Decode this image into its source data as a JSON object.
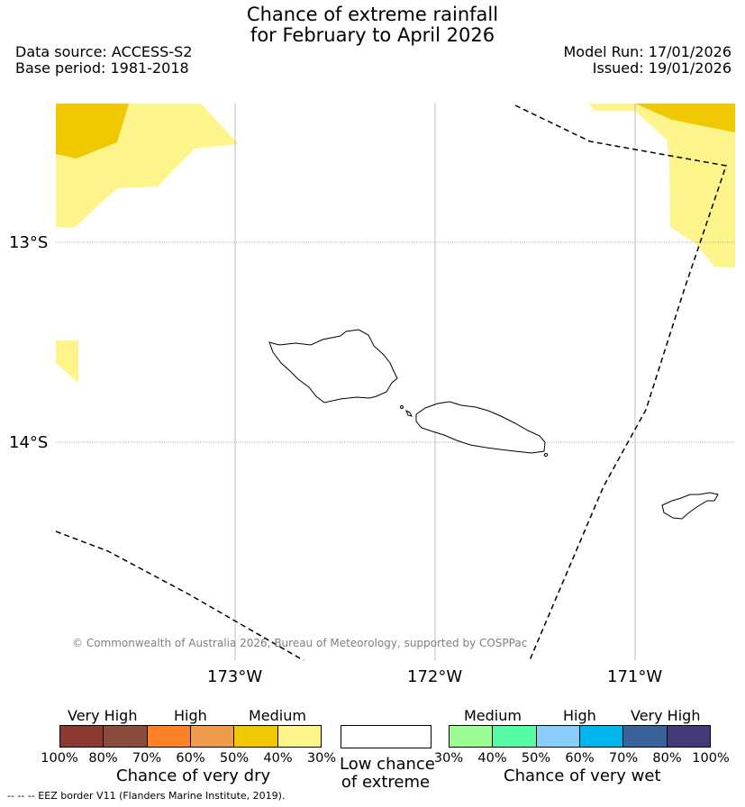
{
  "title": {
    "line1": "Chance of extreme rainfall",
    "line2": "for February to April 2026"
  },
  "meta": {
    "data_source": "Data source: ACCESS-S2",
    "base_period": "Base period: 1981-2018",
    "model_run": "Model Run: 17/01/2026",
    "issued": "Issued: 19/01/2026"
  },
  "map": {
    "lat_labels": [
      "13°S",
      "14°S"
    ],
    "lon_labels": [
      "173°W",
      "172°W",
      "171°W"
    ],
    "copyright": "© Commonwealth of Australia 2026, Bureau of Meteorology, supported by COSPPac",
    "legend_note": "--  --  -- EEZ border V11 (Flanders Marine Institute, 2019)."
  },
  "colorbars": {
    "dry": {
      "title": "Chance of very dry",
      "groups": [
        "Very High",
        "High",
        "Medium"
      ],
      "colors": [
        "#8b3a32",
        "#8b4c3c",
        "#ff8127",
        "#ef9d4c",
        "#efc800",
        "#fdf58c"
      ],
      "ticks": [
        "100%",
        "80%",
        "70%",
        "60%",
        "50%",
        "40%",
        "30%"
      ]
    },
    "low": {
      "title_line1": "Low chance",
      "title_line2": "of extreme",
      "color": "#ffffff"
    },
    "wet": {
      "title": "Chance of very wet",
      "groups": [
        "Medium",
        "High",
        "Very High"
      ],
      "colors": [
        "#9cfc94",
        "#56fca4",
        "#88cdfa",
        "#00b4ec",
        "#3a629b",
        "#423b78"
      ],
      "ticks": [
        "30%",
        "40%",
        "50%",
        "60%",
        "70%",
        "80%",
        "100%"
      ]
    }
  }
}
